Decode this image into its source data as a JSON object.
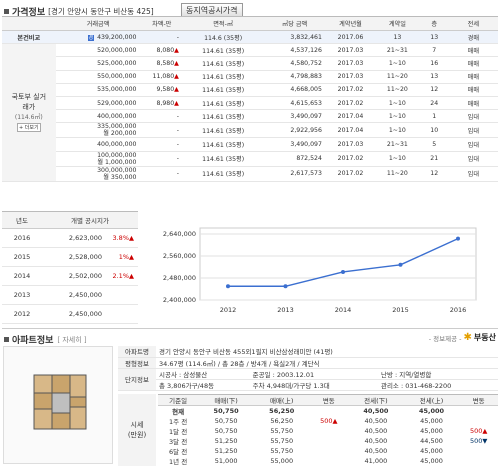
{
  "header": {
    "title": "가격정보",
    "address": "[경기 안양시 동안구 비산동 425]",
    "button": "동지역공시가격"
  },
  "tx_table": {
    "columns": [
      "거래금액",
      "차액-만",
      "면적-㎡",
      "㎡당 금액",
      "계약년월",
      "계약일",
      "층",
      "전세"
    ],
    "base_label": "본건비교",
    "side_label": "국토부 실거래가",
    "side_sub": "(114.6㎡)",
    "side_btn": "+ 더보기",
    "rows": [
      {
        "price": "439,200,000",
        "price2": "",
        "diff": "-",
        "arrow": "",
        "area": "114.6 (35평)",
        "unit": "3,832,461",
        "ym": "2017.06",
        "day": "13",
        "floor": "13",
        "type": "경매",
        "hl": true
      },
      {
        "price": "520,000,000",
        "price2": "",
        "diff": "8,080",
        "arrow": "▲",
        "area": "114.61 (35평)",
        "unit": "4,537,126",
        "ym": "2017.03",
        "day": "21~31",
        "floor": "7",
        "type": "매매"
      },
      {
        "price": "525,000,000",
        "price2": "",
        "diff": "8,580",
        "arrow": "▲",
        "area": "114.61 (35평)",
        "unit": "4,580,752",
        "ym": "2017.03",
        "day": "1~10",
        "floor": "16",
        "type": "매매"
      },
      {
        "price": "550,000,000",
        "price2": "",
        "diff": "11,080",
        "arrow": "▲",
        "area": "114.61 (35평)",
        "unit": "4,798,883",
        "ym": "2017.03",
        "day": "11~20",
        "floor": "13",
        "type": "매매"
      },
      {
        "price": "535,000,000",
        "price2": "",
        "diff": "9,580",
        "arrow": "▲",
        "area": "114.61 (35평)",
        "unit": "4,668,005",
        "ym": "2017.02",
        "day": "11~20",
        "floor": "12",
        "type": "매매"
      },
      {
        "price": "529,000,000",
        "price2": "",
        "diff": "8,980",
        "arrow": "▲",
        "area": "114.61 (35평)",
        "unit": "4,615,653",
        "ym": "2017.02",
        "day": "1~10",
        "floor": "24",
        "type": "매매"
      },
      {
        "price": "400,000,000",
        "price2": "",
        "diff": "-",
        "arrow": "",
        "area": "114.61 (35평)",
        "unit": "3,490,097",
        "ym": "2017.04",
        "day": "1~10",
        "floor": "1",
        "type": "임대"
      },
      {
        "price": "335,000,000",
        "price2": "월 200,000",
        "diff": "-",
        "arrow": "",
        "area": "114.61 (35평)",
        "unit": "2,922,956",
        "ym": "2017.04",
        "day": "1~10",
        "floor": "10",
        "type": "임대"
      },
      {
        "price": "400,000,000",
        "price2": "",
        "diff": "-",
        "arrow": "",
        "area": "114.61 (35평)",
        "unit": "3,490,097",
        "ym": "2017.03",
        "day": "21~31",
        "floor": "5",
        "type": "임대"
      },
      {
        "price": "100,000,000",
        "price2": "월 1,000,000",
        "diff": "-",
        "arrow": "",
        "area": "114.61 (35평)",
        "unit": "872,524",
        "ym": "2017.02",
        "day": "1~10",
        "floor": "21",
        "type": "임대"
      },
      {
        "price": "300,000,000",
        "price2": "월 350,000",
        "diff": "-",
        "arrow": "",
        "area": "114.61 (35평)",
        "unit": "2,617,573",
        "ym": "2017.02",
        "day": "11~20",
        "floor": "12",
        "type": "임대"
      }
    ]
  },
  "official_price": {
    "columns": [
      "년도",
      "개별 공시지가"
    ],
    "rows": [
      {
        "year": "2016",
        "price": "2,623,000",
        "pct": "3.8%",
        "arrow": "▲"
      },
      {
        "year": "2015",
        "price": "2,528,000",
        "pct": "1%",
        "arrow": "▲"
      },
      {
        "year": "2014",
        "price": "2,502,000",
        "pct": "2.1%",
        "arrow": "▲"
      },
      {
        "year": "2013",
        "price": "2,450,000",
        "pct": "",
        "arrow": ""
      },
      {
        "year": "2012",
        "price": "2,450,000",
        "pct": "",
        "arrow": ""
      }
    ]
  },
  "chart_data": {
    "type": "line",
    "x": [
      "2012",
      "2013",
      "2014",
      "2015",
      "2016"
    ],
    "series": [
      {
        "values": [
          2450000,
          2450000,
          2502000,
          2528000,
          2623000
        ]
      }
    ],
    "yticks": [
      "2,640,000",
      "2,600,000",
      "2,560,000",
      "2,520,000",
      "2,480,000",
      "2,440,000",
      "2,400,000"
    ],
    "ylim": [
      2400000,
      2640000
    ],
    "line_color": "#3b6fd0"
  },
  "apt": {
    "title": "아파트정보",
    "view_link": "[ 자세히 ]",
    "provider": "- 정보제공 -",
    "provider_name": "부동산",
    "name_label": "아파트명",
    "name_value": "경기 안양시 동안구 비산동 455외1필지 비산삼성래미안 (41평)",
    "area_label": "평형정보",
    "area_value": "34.67평 (114.6㎡) / 총 28층 / 방4개 / 욕실2개 / 계단식",
    "complex_label": "단지정보",
    "builder": "시공사 : 삼성물산",
    "completion": "준공일 : 2003.12.01",
    "heating": "난방 : 지역/열병합",
    "units": "총 3,806가구/48동",
    "parking": "주차 4,948대/가구당 1.3대",
    "office": "관리소 : 031-468-2200",
    "price_label": "시세",
    "price_sub": "(만원)",
    "hist_cols": [
      "기준일",
      "매매(下)",
      "매매(上)",
      "변동",
      "전세(下)",
      "전세(上)",
      "변동"
    ],
    "hist": [
      {
        "d": "현재",
        "a": "50,750",
        "b": "56,250",
        "c": "",
        "e": "40,500",
        "f": "45,000",
        "g": "",
        "bold": true
      },
      {
        "d": "1주 전",
        "a": "50,750",
        "b": "56,250",
        "c": "500▲",
        "e": "40,500",
        "f": "45,000",
        "g": ""
      },
      {
        "d": "1달 전",
        "a": "50,750",
        "b": "55,750",
        "c": "",
        "e": "40,500",
        "f": "45,000",
        "g": "500▲"
      },
      {
        "d": "3달 전",
        "a": "51,250",
        "b": "55,750",
        "c": "",
        "e": "40,500",
        "f": "44,500",
        "g": "500▼"
      },
      {
        "d": "6달 전",
        "a": "51,250",
        "b": "55,750",
        "c": "",
        "e": "40,500",
        "f": "45,000",
        "g": ""
      },
      {
        "d": "1년 전",
        "a": "51,000",
        "b": "55,000",
        "c": "",
        "e": "41,000",
        "f": "45,000",
        "g": ""
      }
    ]
  }
}
